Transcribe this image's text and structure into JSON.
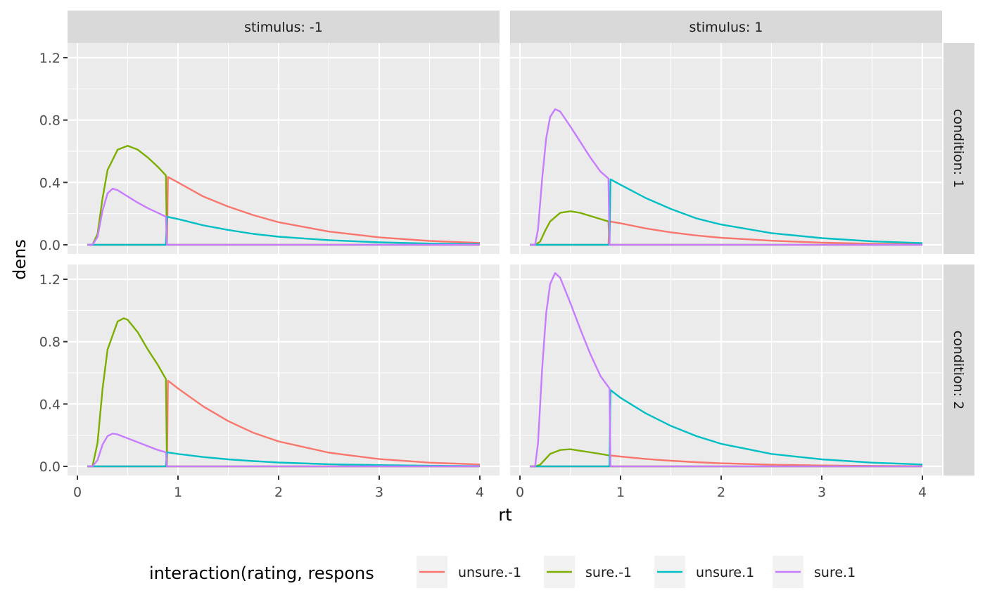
{
  "chart_data": {
    "type": "line",
    "xlabel": "rt",
    "ylabel": "dens",
    "xlim": [
      0,
      4
    ],
    "ylim": [
      0,
      1.2
    ],
    "x_ticks": [
      0,
      1,
      2,
      3,
      4
    ],
    "y_ticks": [
      0.0,
      0.4,
      0.8,
      1.2
    ],
    "y_tick_labels": [
      "0.0",
      "0.4",
      "0.8",
      "1.2"
    ],
    "grid": true,
    "legend_position": "bottom",
    "legend_title": "interaction(rating, respons",
    "col_facet_labels": [
      "stimulus: -1",
      "stimulus: 1"
    ],
    "row_facet_labels": [
      "condition: 1",
      "condition: 2"
    ],
    "series": [
      {
        "name": "unsure.-1",
        "color": "#F8766D"
      },
      {
        "name": "sure.-1",
        "color": "#7CAE00"
      },
      {
        "name": "unsure.1",
        "color": "#00BFC4"
      },
      {
        "name": "sure.1",
        "color": "#C77CFF"
      }
    ],
    "panels": [
      {
        "stimulus": "-1",
        "condition": "1",
        "curves": {
          "unsure.-1": [
            [
              0.1,
              0
            ],
            [
              0.89,
              0
            ],
            [
              0.9,
              0.435
            ],
            [
              1.0,
              0.4
            ],
            [
              1.25,
              0.31
            ],
            [
              1.5,
              0.245
            ],
            [
              1.75,
              0.19
            ],
            [
              2.0,
              0.145
            ],
            [
              2.5,
              0.085
            ],
            [
              3.0,
              0.048
            ],
            [
              3.5,
              0.025
            ],
            [
              4.0,
              0.012
            ]
          ],
          "sure.-1": [
            [
              0.1,
              0
            ],
            [
              0.15,
              0
            ],
            [
              0.2,
              0.07
            ],
            [
              0.25,
              0.3
            ],
            [
              0.3,
              0.48
            ],
            [
              0.4,
              0.61
            ],
            [
              0.5,
              0.635
            ],
            [
              0.6,
              0.61
            ],
            [
              0.7,
              0.56
            ],
            [
              0.8,
              0.5
            ],
            [
              0.88,
              0.445
            ],
            [
              0.89,
              0
            ],
            [
              4.0,
              0
            ]
          ],
          "unsure.1": [
            [
              0.1,
              0
            ],
            [
              0.88,
              0
            ],
            [
              0.89,
              0.18
            ],
            [
              1.0,
              0.165
            ],
            [
              1.25,
              0.125
            ],
            [
              1.5,
              0.095
            ],
            [
              1.75,
              0.07
            ],
            [
              2.0,
              0.052
            ],
            [
              2.5,
              0.03
            ],
            [
              3.0,
              0.016
            ],
            [
              3.5,
              0.008
            ],
            [
              4.0,
              0.004
            ]
          ],
          "sure.1": [
            [
              0.1,
              0
            ],
            [
              0.15,
              0
            ],
            [
              0.2,
              0.05
            ],
            [
              0.25,
              0.22
            ],
            [
              0.3,
              0.33
            ],
            [
              0.35,
              0.36
            ],
            [
              0.4,
              0.35
            ],
            [
              0.5,
              0.31
            ],
            [
              0.6,
              0.27
            ],
            [
              0.7,
              0.235
            ],
            [
              0.8,
              0.205
            ],
            [
              0.88,
              0.18
            ],
            [
              0.89,
              0
            ],
            [
              4.0,
              0
            ]
          ]
        }
      },
      {
        "stimulus": "1",
        "condition": "1",
        "curves": {
          "unsure.-1": [
            [
              0.1,
              0
            ],
            [
              0.88,
              0
            ],
            [
              0.89,
              0.15
            ],
            [
              1.0,
              0.138
            ],
            [
              1.25,
              0.105
            ],
            [
              1.5,
              0.08
            ],
            [
              1.75,
              0.06
            ],
            [
              2.0,
              0.045
            ],
            [
              2.5,
              0.026
            ],
            [
              3.0,
              0.014
            ],
            [
              3.5,
              0.007
            ],
            [
              4.0,
              0.003
            ]
          ],
          "sure.-1": [
            [
              0.1,
              0
            ],
            [
              0.15,
              0
            ],
            [
              0.2,
              0.02
            ],
            [
              0.25,
              0.09
            ],
            [
              0.3,
              0.15
            ],
            [
              0.4,
              0.205
            ],
            [
              0.5,
              0.215
            ],
            [
              0.6,
              0.205
            ],
            [
              0.7,
              0.185
            ],
            [
              0.8,
              0.165
            ],
            [
              0.88,
              0.15
            ],
            [
              0.89,
              0
            ],
            [
              4.0,
              0
            ]
          ],
          "unsure.1": [
            [
              0.1,
              0
            ],
            [
              0.89,
              0
            ],
            [
              0.9,
              0.42
            ],
            [
              1.0,
              0.385
            ],
            [
              1.25,
              0.3
            ],
            [
              1.5,
              0.23
            ],
            [
              1.75,
              0.17
            ],
            [
              2.0,
              0.13
            ],
            [
              2.5,
              0.075
            ],
            [
              3.0,
              0.043
            ],
            [
              3.5,
              0.022
            ],
            [
              4.0,
              0.011
            ]
          ],
          "sure.1": [
            [
              0.1,
              0
            ],
            [
              0.15,
              0
            ],
            [
              0.18,
              0.1
            ],
            [
              0.22,
              0.42
            ],
            [
              0.26,
              0.68
            ],
            [
              0.3,
              0.82
            ],
            [
              0.35,
              0.87
            ],
            [
              0.4,
              0.855
            ],
            [
              0.5,
              0.76
            ],
            [
              0.6,
              0.66
            ],
            [
              0.7,
              0.56
            ],
            [
              0.8,
              0.47
            ],
            [
              0.88,
              0.425
            ],
            [
              0.89,
              0
            ],
            [
              4.0,
              0
            ]
          ]
        }
      },
      {
        "stimulus": "-1",
        "condition": "2",
        "curves": {
          "unsure.-1": [
            [
              0.1,
              0
            ],
            [
              0.89,
              0
            ],
            [
              0.9,
              0.55
            ],
            [
              1.0,
              0.5
            ],
            [
              1.25,
              0.385
            ],
            [
              1.5,
              0.29
            ],
            [
              1.75,
              0.215
            ],
            [
              2.0,
              0.16
            ],
            [
              2.5,
              0.088
            ],
            [
              3.0,
              0.047
            ],
            [
              3.5,
              0.024
            ],
            [
              4.0,
              0.012
            ]
          ],
          "sure.-1": [
            [
              0.1,
              0
            ],
            [
              0.15,
              0
            ],
            [
              0.2,
              0.15
            ],
            [
              0.25,
              0.5
            ],
            [
              0.3,
              0.75
            ],
            [
              0.4,
              0.93
            ],
            [
              0.46,
              0.95
            ],
            [
              0.5,
              0.94
            ],
            [
              0.6,
              0.86
            ],
            [
              0.7,
              0.75
            ],
            [
              0.8,
              0.65
            ],
            [
              0.88,
              0.56
            ],
            [
              0.89,
              0
            ],
            [
              4.0,
              0
            ]
          ],
          "unsure.1": [
            [
              0.1,
              0
            ],
            [
              0.88,
              0
            ],
            [
              0.89,
              0.09
            ],
            [
              1.0,
              0.08
            ],
            [
              1.25,
              0.06
            ],
            [
              1.5,
              0.045
            ],
            [
              1.75,
              0.034
            ],
            [
              2.0,
              0.025
            ],
            [
              2.5,
              0.014
            ],
            [
              3.0,
              0.008
            ],
            [
              3.5,
              0.004
            ],
            [
              4.0,
              0.002
            ]
          ],
          "sure.1": [
            [
              0.1,
              0
            ],
            [
              0.15,
              0
            ],
            [
              0.2,
              0.04
            ],
            [
              0.25,
              0.14
            ],
            [
              0.3,
              0.195
            ],
            [
              0.35,
              0.21
            ],
            [
              0.4,
              0.205
            ],
            [
              0.5,
              0.18
            ],
            [
              0.6,
              0.155
            ],
            [
              0.7,
              0.13
            ],
            [
              0.8,
              0.105
            ],
            [
              0.88,
              0.09
            ],
            [
              0.89,
              0
            ],
            [
              4.0,
              0
            ]
          ]
        }
      },
      {
        "stimulus": "1",
        "condition": "2",
        "curves": {
          "unsure.-1": [
            [
              0.1,
              0
            ],
            [
              0.89,
              0
            ],
            [
              0.9,
              0.07
            ],
            [
              1.0,
              0.063
            ],
            [
              1.25,
              0.048
            ],
            [
              1.5,
              0.036
            ],
            [
              1.75,
              0.027
            ],
            [
              2.0,
              0.02
            ],
            [
              2.5,
              0.011
            ],
            [
              3.0,
              0.006
            ],
            [
              3.5,
              0.003
            ],
            [
              4.0,
              0.0015
            ]
          ],
          "sure.-1": [
            [
              0.1,
              0
            ],
            [
              0.15,
              0
            ],
            [
              0.2,
              0.01
            ],
            [
              0.25,
              0.045
            ],
            [
              0.3,
              0.08
            ],
            [
              0.4,
              0.105
            ],
            [
              0.5,
              0.11
            ],
            [
              0.6,
              0.1
            ],
            [
              0.7,
              0.09
            ],
            [
              0.8,
              0.08
            ],
            [
              0.89,
              0.07
            ],
            [
              0.9,
              0
            ],
            [
              4.0,
              0
            ]
          ],
          "unsure.1": [
            [
              0.1,
              0
            ],
            [
              0.89,
              0
            ],
            [
              0.9,
              0.49
            ],
            [
              1.0,
              0.44
            ],
            [
              1.25,
              0.34
            ],
            [
              1.5,
              0.26
            ],
            [
              1.75,
              0.195
            ],
            [
              2.0,
              0.145
            ],
            [
              2.5,
              0.08
            ],
            [
              3.0,
              0.045
            ],
            [
              3.5,
              0.024
            ],
            [
              4.0,
              0.012
            ]
          ],
          "sure.1": [
            [
              0.1,
              0
            ],
            [
              0.15,
              0
            ],
            [
              0.18,
              0.15
            ],
            [
              0.22,
              0.62
            ],
            [
              0.26,
              0.98
            ],
            [
              0.3,
              1.17
            ],
            [
              0.35,
              1.24
            ],
            [
              0.4,
              1.21
            ],
            [
              0.5,
              1.05
            ],
            [
              0.6,
              0.88
            ],
            [
              0.7,
              0.72
            ],
            [
              0.8,
              0.58
            ],
            [
              0.89,
              0.5
            ],
            [
              0.9,
              0
            ],
            [
              4.0,
              0
            ]
          ]
        }
      }
    ]
  }
}
